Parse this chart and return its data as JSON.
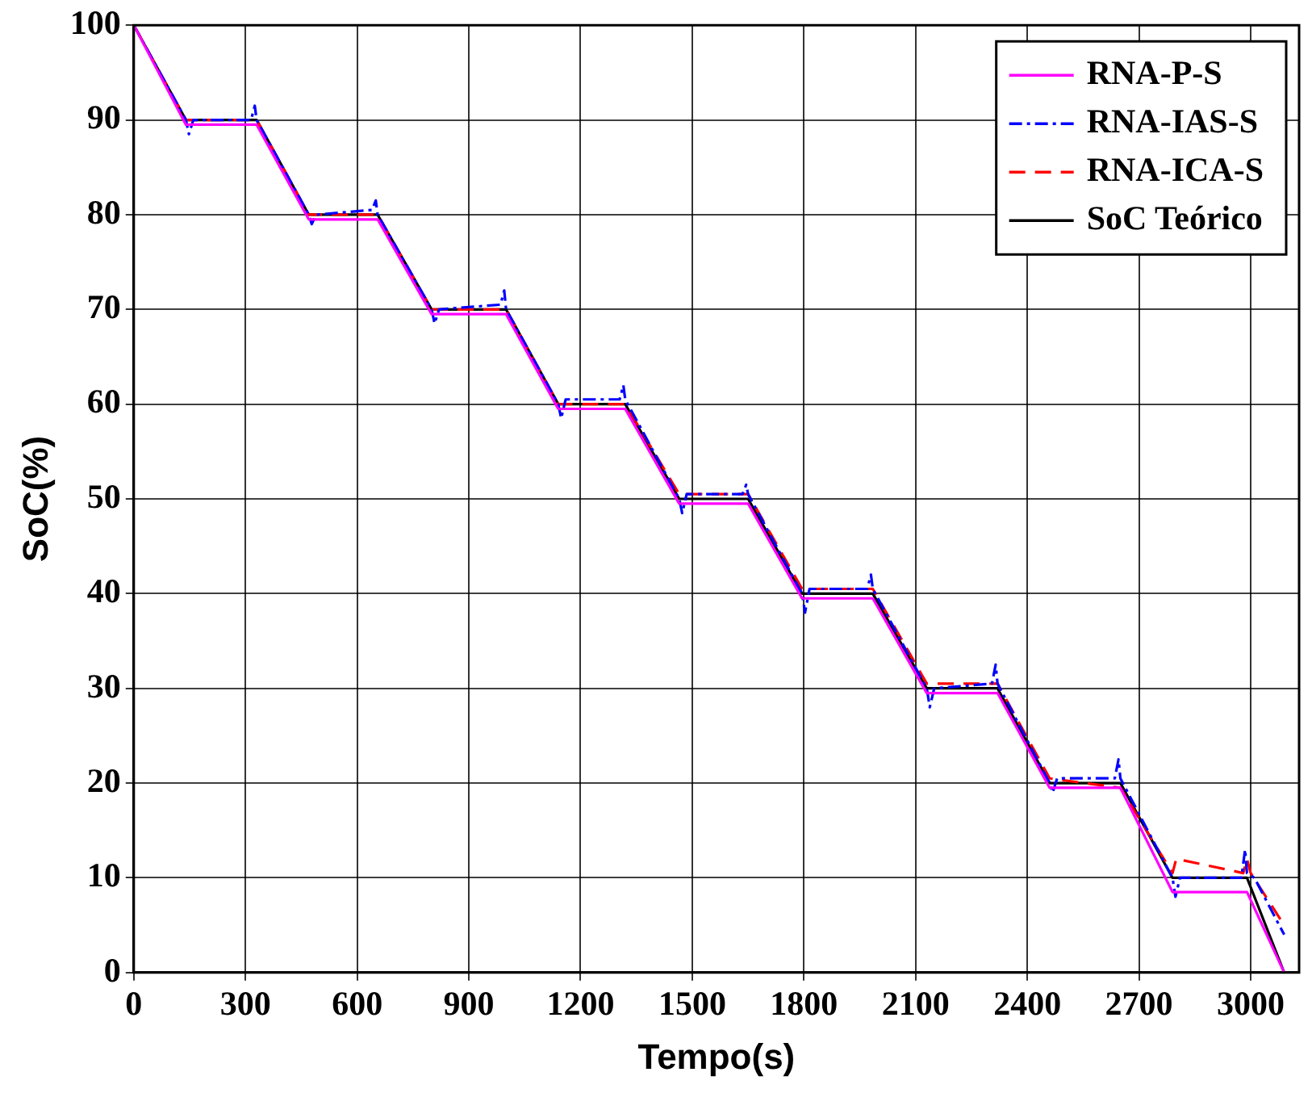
{
  "chart_data": {
    "type": "line",
    "xlabel": "Tempo(s)",
    "ylabel": "SoC(%)",
    "xlim": [
      0,
      3130
    ],
    "xticks": [
      0,
      300,
      600,
      900,
      1200,
      1500,
      1800,
      2100,
      2400,
      2700,
      3000
    ],
    "ylim": [
      0,
      100
    ],
    "yticks": [
      0,
      10,
      20,
      30,
      40,
      50,
      60,
      70,
      80,
      90,
      100
    ],
    "grid": true,
    "legend": "top right",
    "series": [
      {
        "name": "RNA-P-S",
        "color": "#ff00ff",
        "line_style": "solid",
        "x": [
          0,
          140,
          330,
          470,
          655,
          800,
          1000,
          1140,
          1320,
          1465,
          1650,
          1795,
          1985,
          2130,
          2320,
          2460,
          2650,
          2790,
          2990,
          3090
        ],
        "values": [
          100,
          89.5,
          89.5,
          79.5,
          79.5,
          69.5,
          69.5,
          59.5,
          59.5,
          49.5,
          49.5,
          39.5,
          39.5,
          29.5,
          29.5,
          19.5,
          19.5,
          8.5,
          8.5,
          0
        ]
      },
      {
        "name": "RNA-IAS-S",
        "color": "#0000ff",
        "line_style": "dashdot",
        "x": [
          0,
          140,
          148,
          160,
          315,
          325,
          330,
          470,
          478,
          490,
          640,
          650,
          655,
          800,
          808,
          820,
          985,
          995,
          1000,
          1140,
          1148,
          1160,
          1305,
          1315,
          1320,
          1465,
          1473,
          1485,
          1635,
          1645,
          1650,
          1795,
          1803,
          1815,
          1970,
          1980,
          1985,
          2130,
          2138,
          2150,
          2305,
          2315,
          2320,
          2460,
          2468,
          2480,
          2635,
          2645,
          2650,
          2790,
          2798,
          2810,
          2975,
          2985,
          2990,
          3010,
          3090
        ],
        "values": [
          100,
          90,
          88.5,
          90,
          90,
          91.5,
          90,
          80,
          79,
          80,
          80.5,
          81.5,
          80,
          70,
          68.5,
          70,
          70.5,
          72,
          70,
          60,
          58.5,
          60.5,
          60.5,
          62,
          60.5,
          50,
          48.5,
          50.5,
          50.5,
          51.5,
          50.5,
          40,
          38,
          40.5,
          40.5,
          42,
          40.5,
          30,
          28,
          30,
          30.5,
          32.5,
          30.5,
          20,
          19,
          20.5,
          20.5,
          22.5,
          20.5,
          10,
          8,
          10,
          10,
          13,
          10.5,
          10,
          4
        ]
      },
      {
        "name": "RNA-ICA-S",
        "color": "#ff0000",
        "line_style": "dashed",
        "x": [
          0,
          140,
          330,
          470,
          655,
          800,
          1000,
          1140,
          1320,
          1465,
          1650,
          1795,
          1985,
          2130,
          2320,
          2460,
          2650,
          2790,
          2800,
          2980,
          2990,
          3000,
          3090
        ],
        "values": [
          100,
          90,
          90,
          80,
          80,
          70,
          70,
          60,
          60,
          50.5,
          50.5,
          40.5,
          40.5,
          30.5,
          30.5,
          20.5,
          19.5,
          10.5,
          12,
          10.5,
          12,
          10.5,
          5
        ]
      },
      {
        "name": "SoC Teórico",
        "color": "#000000",
        "line_style": "solid",
        "x": [
          0,
          140,
          330,
          470,
          655,
          800,
          1000,
          1140,
          1320,
          1465,
          1650,
          1795,
          1985,
          2130,
          2320,
          2460,
          2650,
          2790,
          2990,
          3090
        ],
        "values": [
          100,
          90,
          90,
          80,
          80,
          70,
          70,
          60,
          60,
          50,
          50,
          40,
          40,
          30,
          30,
          20,
          20,
          10,
          10,
          0
        ]
      }
    ]
  }
}
